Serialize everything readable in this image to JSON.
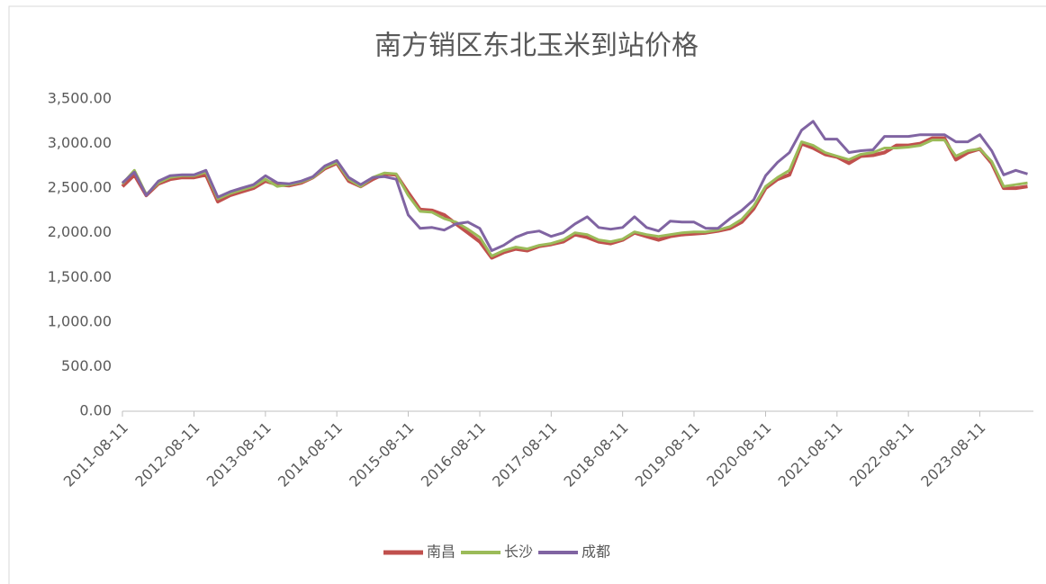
{
  "chart_data": {
    "type": "line",
    "title": "南方销区东北玉米到站价格",
    "x": [
      "2011-08-11",
      "2011-10-11",
      "2011-12-11",
      "2012-02-11",
      "2012-04-11",
      "2012-06-11",
      "2012-08-11",
      "2012-10-11",
      "2012-12-11",
      "2013-02-11",
      "2013-04-11",
      "2013-06-11",
      "2013-08-11",
      "2013-10-11",
      "2013-12-11",
      "2014-02-11",
      "2014-04-11",
      "2014-06-11",
      "2014-08-11",
      "2014-10-11",
      "2014-12-11",
      "2015-02-11",
      "2015-04-11",
      "2015-06-11",
      "2015-08-11",
      "2015-10-11",
      "2015-12-11",
      "2016-02-11",
      "2016-04-11",
      "2016-06-11",
      "2016-08-11",
      "2016-10-11",
      "2016-12-11",
      "2017-02-11",
      "2017-04-11",
      "2017-06-11",
      "2017-08-11",
      "2017-10-11",
      "2017-12-11",
      "2018-02-11",
      "2018-04-11",
      "2018-06-11",
      "2018-08-11",
      "2018-10-11",
      "2018-12-11",
      "2019-02-11",
      "2019-04-11",
      "2019-06-11",
      "2019-08-11",
      "2019-10-11",
      "2019-12-11",
      "2020-02-11",
      "2020-04-11",
      "2020-06-11",
      "2020-08-11",
      "2020-10-11",
      "2020-12-11",
      "2021-02-11",
      "2021-04-11",
      "2021-06-11",
      "2021-08-11",
      "2021-10-11",
      "2021-12-11",
      "2022-02-11",
      "2022-04-11",
      "2022-06-11",
      "2022-08-11",
      "2022-10-11",
      "2022-12-11",
      "2023-02-11",
      "2023-04-11",
      "2023-06-11",
      "2023-08-11",
      "2023-10-11",
      "2023-12-11",
      "2024-02-11",
      "2024-04-11"
    ],
    "series": [
      {
        "name": "南昌",
        "color": "#c0504d",
        "width": 4,
        "values": [
          2520,
          2650,
          2420,
          2550,
          2600,
          2620,
          2620,
          2650,
          2350,
          2420,
          2460,
          2500,
          2580,
          2540,
          2530,
          2560,
          2620,
          2720,
          2780,
          2580,
          2520,
          2600,
          2660,
          2650,
          2450,
          2260,
          2250,
          2200,
          2100,
          2000,
          1900,
          1720,
          1780,
          1820,
          1800,
          1850,
          1870,
          1900,
          1980,
          1950,
          1900,
          1880,
          1920,
          2000,
          1960,
          1920,
          1960,
          1980,
          1990,
          2000,
          2020,
          2050,
          2120,
          2270,
          2500,
          2600,
          2650,
          3000,
          2950,
          2880,
          2850,
          2780,
          2860,
          2870,
          2900,
          2980,
          2980,
          3000,
          3060,
          3060,
          2820,
          2900,
          2940,
          2780,
          2500,
          2500,
          2520
        ]
      },
      {
        "name": "长沙",
        "color": "#9bbb59",
        "width": 3,
        "values": [
          2550,
          2700,
          2430,
          2560,
          2620,
          2640,
          2640,
          2680,
          2380,
          2440,
          2480,
          2520,
          2600,
          2520,
          2540,
          2570,
          2620,
          2730,
          2790,
          2600,
          2520,
          2620,
          2670,
          2660,
          2420,
          2240,
          2230,
          2160,
          2120,
          2040,
          1950,
          1740,
          1800,
          1840,
          1820,
          1860,
          1880,
          1920,
          2000,
          1980,
          1920,
          1900,
          1930,
          2010,
          1980,
          1960,
          1980,
          2000,
          2010,
          2010,
          2030,
          2070,
          2150,
          2300,
          2520,
          2620,
          2700,
          3020,
          2980,
          2900,
          2860,
          2820,
          2880,
          2900,
          2950,
          2950,
          2960,
          2980,
          3040,
          3040,
          2860,
          2920,
          2940,
          2800,
          2520,
          2540,
          2560
        ]
      },
      {
        "name": "成都",
        "color": "#8064a2",
        "width": 3,
        "values": [
          2560,
          2680,
          2420,
          2580,
          2640,
          2650,
          2650,
          2700,
          2400,
          2460,
          2500,
          2540,
          2640,
          2560,
          2550,
          2580,
          2630,
          2750,
          2810,
          2620,
          2540,
          2620,
          2630,
          2600,
          2200,
          2050,
          2060,
          2030,
          2100,
          2120,
          2050,
          1800,
          1860,
          1950,
          2000,
          2020,
          1960,
          2000,
          2100,
          2180,
          2060,
          2040,
          2060,
          2180,
          2060,
          2020,
          2130,
          2120,
          2120,
          2050,
          2050,
          2160,
          2250,
          2370,
          2640,
          2790,
          2900,
          3150,
          3250,
          3050,
          3050,
          2900,
          2920,
          2930,
          3080,
          3080,
          3080,
          3100,
          3100,
          3100,
          3020,
          3020,
          3100,
          2920,
          2650,
          2700,
          2660
        ]
      }
    ],
    "xlim": [
      "2011-08-11",
      "2024-05-11"
    ],
    "xticks": [
      "2011-08-11",
      "2012-08-11",
      "2013-08-11",
      "2014-08-11",
      "2015-08-11",
      "2016-08-11",
      "2017-08-11",
      "2018-08-11",
      "2019-08-11",
      "2020-08-11",
      "2021-08-11",
      "2022-08-11",
      "2023-08-11"
    ],
    "ylim": [
      0,
      3500
    ],
    "yticks": [
      {
        "value": 0,
        "label": "0.00"
      },
      {
        "value": 500,
        "label": "500.00"
      },
      {
        "value": 1000,
        "label": "1,000.00"
      },
      {
        "value": 1500,
        "label": "1,500.00"
      },
      {
        "value": 2000,
        "label": "2,000.00"
      },
      {
        "value": 2500,
        "label": "2,500.00"
      },
      {
        "value": 3000,
        "label": "3,000.00"
      },
      {
        "value": 3500,
        "label": "3,500.00"
      }
    ],
    "legend": "bottom"
  }
}
